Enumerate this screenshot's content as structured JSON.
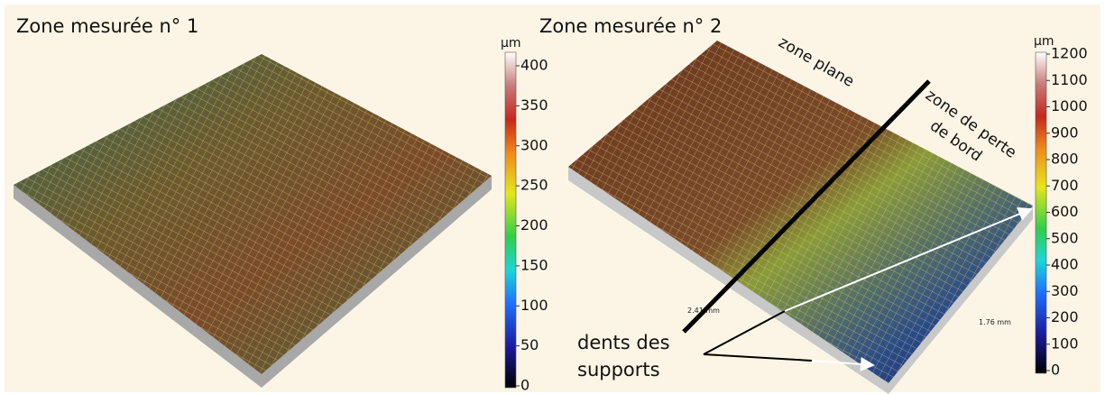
{
  "panels": [
    {
      "title": "Zone mesurée n° 1",
      "unit": "µm",
      "colorbar": {
        "ticks": [
          0,
          50,
          100,
          150,
          200,
          250,
          300,
          350,
          400
        ]
      }
    },
    {
      "title": "Zone mesurée n° 2",
      "unit": "µm",
      "colorbar": {
        "ticks": [
          0,
          100,
          200,
          300,
          400,
          500,
          600,
          700,
          800,
          900,
          1000,
          1100,
          1200
        ]
      },
      "measures": [
        "2.41 mm",
        "1.76 mm"
      ]
    }
  ],
  "annotations": {
    "zone_plane": "zone plane",
    "zone_bord": [
      "zone de perte",
      "de bord"
    ],
    "dents": [
      "dents des",
      "supports"
    ]
  }
}
